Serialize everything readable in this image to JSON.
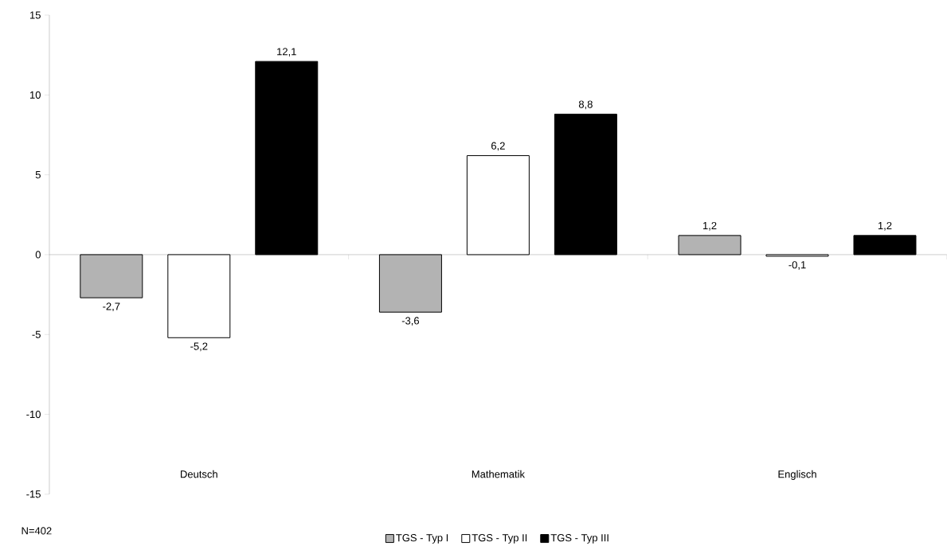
{
  "chart_data": {
    "type": "bar",
    "categories": [
      "Deutsch",
      "Mathematik",
      "Englisch"
    ],
    "series": [
      {
        "name": "TGS - Typ I",
        "color": "#b3b3b3",
        "values": [
          -2.7,
          -3.6,
          1.2
        ],
        "value_labels": [
          "-2,7",
          "-3,6",
          "1,2"
        ]
      },
      {
        "name": "TGS - Typ II",
        "color": "#ffffff",
        "values": [
          -5.2,
          6.2,
          -0.1
        ],
        "value_labels": [
          "-5,2",
          "6,2",
          "-0,1"
        ]
      },
      {
        "name": "TGS - Typ III",
        "color": "#000000",
        "values": [
          12.1,
          8.8,
          1.2
        ],
        "value_labels": [
          "12,1",
          "8,8",
          "1,2"
        ]
      }
    ],
    "ylim": [
      -15,
      15
    ],
    "yticks": [
      -15,
      -10,
      -5,
      0,
      5,
      10,
      15
    ],
    "legend": "bottom",
    "annotations": [
      "N=402"
    ]
  }
}
